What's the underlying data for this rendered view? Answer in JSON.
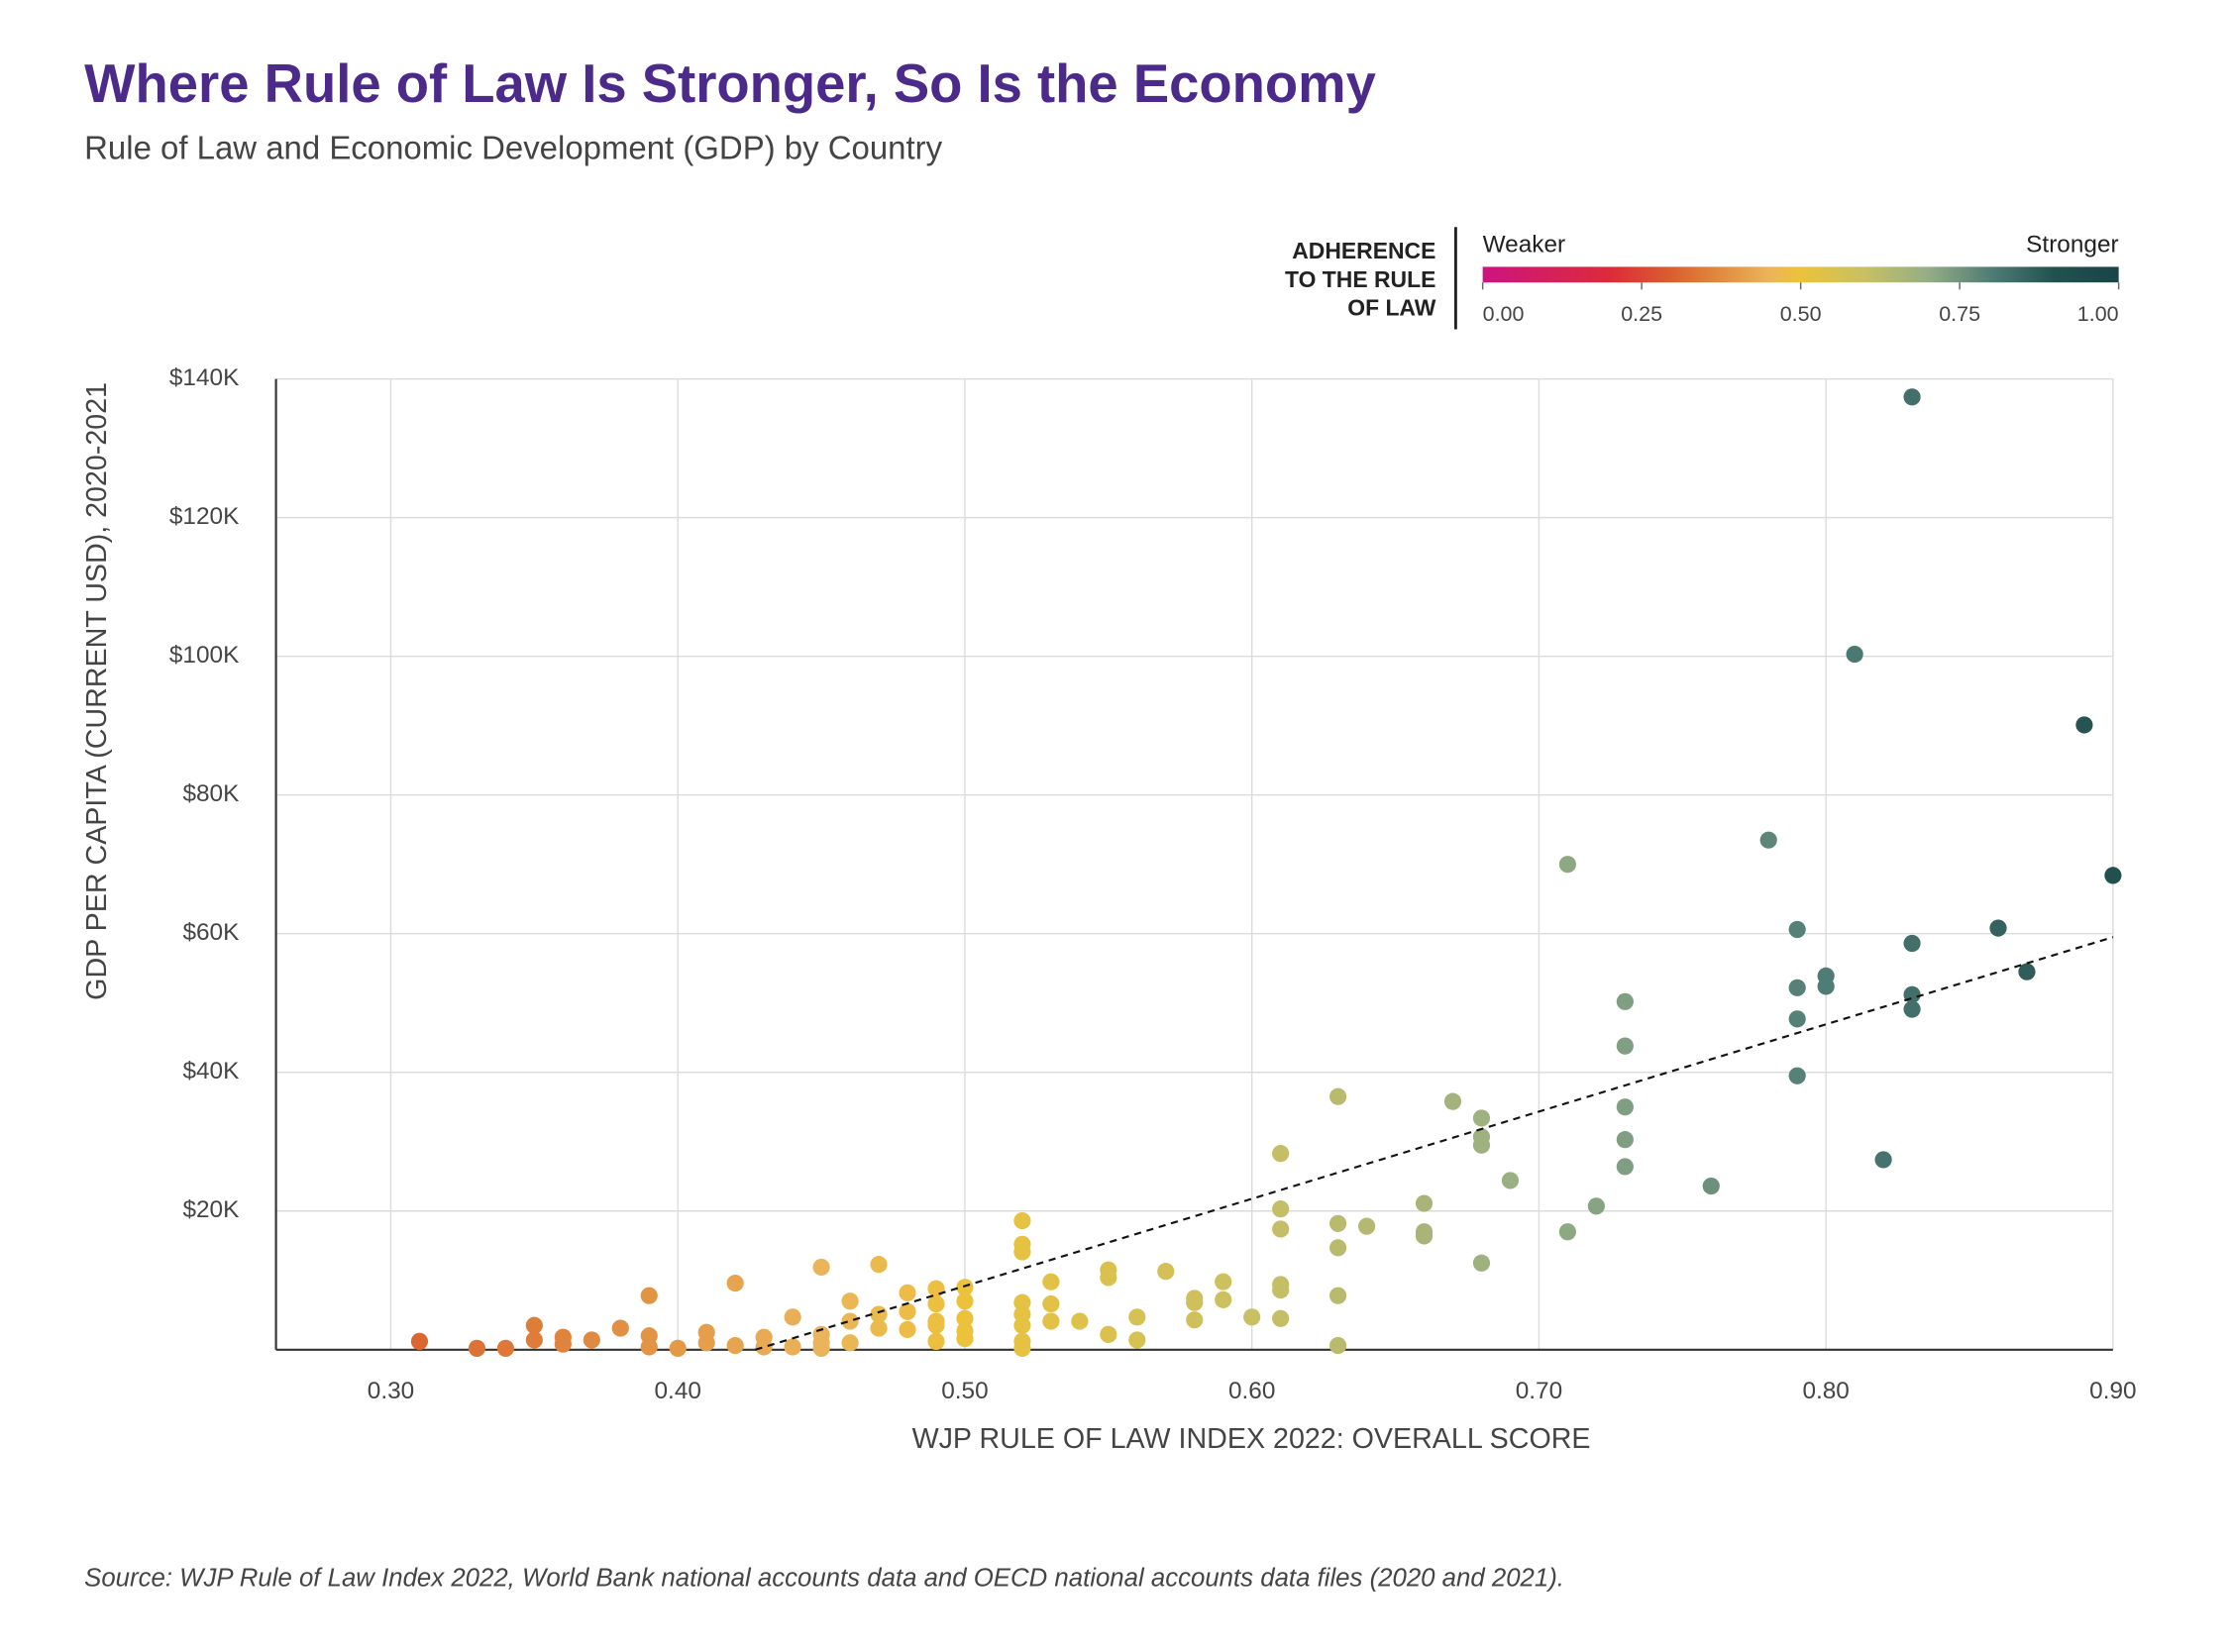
{
  "chart_data": {
    "type": "scatter",
    "title": "Where Rule of Law Is Stronger, So Is the Economy",
    "subtitle": "Rule of Law and Economic Development (GDP) by Country",
    "x_label": "WJP RULE OF LAW INDEX 2022: OVERALL SCORE",
    "y_label": "GDP PER CAPITA (CURRENT USD), 2020-2021",
    "source": "Source: WJP Rule of Law Index 2022, World Bank national accounts data and OECD national accounts data files (2020 and 2021).",
    "xlim": [
      0.26,
      0.9
    ],
    "ylim": [
      0,
      140000
    ],
    "xticks": [
      {
        "value": 0.3,
        "label": "0.30"
      },
      {
        "value": 0.4,
        "label": "0.40"
      },
      {
        "value": 0.5,
        "label": "0.50"
      },
      {
        "value": 0.6,
        "label": "0.60"
      },
      {
        "value": 0.7,
        "label": "0.70"
      },
      {
        "value": 0.8,
        "label": "0.80"
      },
      {
        "value": 0.9,
        "label": "0.90"
      }
    ],
    "yticks": [
      {
        "value": 20000,
        "label": "$20K"
      },
      {
        "value": 40000,
        "label": "$40K"
      },
      {
        "value": 60000,
        "label": "$60K"
      },
      {
        "value": 80000,
        "label": "$80K"
      },
      {
        "value": 100000,
        "label": "$100K"
      },
      {
        "value": 120000,
        "label": "$120K"
      },
      {
        "value": 140000,
        "label": "$140K"
      }
    ],
    "grid": true,
    "x": [
      0.31,
      0.33,
      0.34,
      0.35,
      0.35,
      0.36,
      0.36,
      0.37,
      0.38,
      0.39,
      0.39,
      0.39,
      0.4,
      0.41,
      0.41,
      0.42,
      0.42,
      0.43,
      0.43,
      0.44,
      0.44,
      0.45,
      0.45,
      0.45,
      0.45,
      0.46,
      0.46,
      0.46,
      0.47,
      0.47,
      0.47,
      0.48,
      0.48,
      0.48,
      0.49,
      0.49,
      0.49,
      0.49,
      0.49,
      0.5,
      0.5,
      0.5,
      0.5,
      0.5,
      0.52,
      0.52,
      0.52,
      0.52,
      0.52,
      0.52,
      0.52,
      0.52,
      0.53,
      0.53,
      0.53,
      0.54,
      0.55,
      0.55,
      0.55,
      0.56,
      0.56,
      0.57,
      0.58,
      0.58,
      0.58,
      0.59,
      0.59,
      0.6,
      0.61,
      0.61,
      0.61,
      0.61,
      0.61,
      0.61,
      0.63,
      0.63,
      0.63,
      0.63,
      0.63,
      0.64,
      0.66,
      0.66,
      0.66,
      0.67,
      0.68,
      0.68,
      0.68,
      0.68,
      0.69,
      0.71,
      0.71,
      0.72,
      0.73,
      0.73,
      0.73,
      0.73,
      0.73,
      0.76,
      0.78,
      0.79,
      0.79,
      0.79,
      0.79,
      0.8,
      0.8,
      0.81,
      0.82,
      0.83,
      0.83,
      0.83,
      0.83,
      0.86,
      0.87,
      0.89,
      0.9
    ],
    "y": [
      1200,
      200,
      200,
      3500,
      1400,
      1800,
      800,
      1400,
      3100,
      7800,
      2000,
      400,
      200,
      2500,
      1000,
      9600,
      600,
      1800,
      400,
      4700,
      400,
      11900,
      2200,
      1000,
      200,
      7000,
      4100,
      1000,
      12300,
      5100,
      3100,
      8200,
      5500,
      2900,
      8800,
      6600,
      4100,
      3500,
      1200,
      9000,
      7000,
      4500,
      2700,
      1600,
      18600,
      15200,
      14100,
      6800,
      5100,
      3500,
      1200,
      200,
      9800,
      6600,
      4100,
      4100,
      11500,
      10400,
      2200,
      4700,
      1400,
      11300,
      7400,
      6800,
      4300,
      9800,
      7200,
      4700,
      28300,
      20300,
      17400,
      9400,
      8600,
      4500,
      36500,
      18200,
      14700,
      7800,
      600,
      17800,
      21100,
      17000,
      16400,
      35800,
      33400,
      30700,
      29500,
      12500,
      24400,
      70000,
      17000,
      20700,
      50200,
      43800,
      35000,
      30300,
      26400,
      23600,
      73500,
      60600,
      52200,
      47700,
      39500,
      53900,
      52400,
      100300,
      27400,
      137400,
      58600,
      51200,
      49100,
      60800,
      54500,
      90100,
      68400
    ],
    "trendline": {
      "x": [
        0.427,
        0.9
      ],
      "y": [
        0,
        59500
      ]
    },
    "colorbar": {
      "title": [
        "ADHERENCE",
        "TO THE RULE",
        "OF LAW"
      ],
      "low_label": "Weaker",
      "high_label": "Stronger",
      "lim": [
        0,
        1
      ],
      "ticks": [
        {
          "value": 0,
          "label": "0.00"
        },
        {
          "value": 0.25,
          "label": "0.25"
        },
        {
          "value": 0.5,
          "label": "0.50"
        },
        {
          "value": 0.75,
          "label": "0.75"
        },
        {
          "value": 1,
          "label": "1.00"
        }
      ]
    },
    "colorscale": [
      [
        0,
        "#cc1480"
      ],
      [
        0.2,
        "#dd2a3a"
      ],
      [
        0.3,
        "#d9612e"
      ],
      [
        0.4,
        "#e39a47"
      ],
      [
        0.45,
        "#ebb45a"
      ],
      [
        0.5,
        "#ecc23a"
      ],
      [
        0.6,
        "#c8c063"
      ],
      [
        0.7,
        "#95ad86"
      ],
      [
        0.8,
        "#4f7c74"
      ],
      [
        0.9,
        "#22504f"
      ],
      [
        1,
        "#1a4446"
      ]
    ]
  }
}
